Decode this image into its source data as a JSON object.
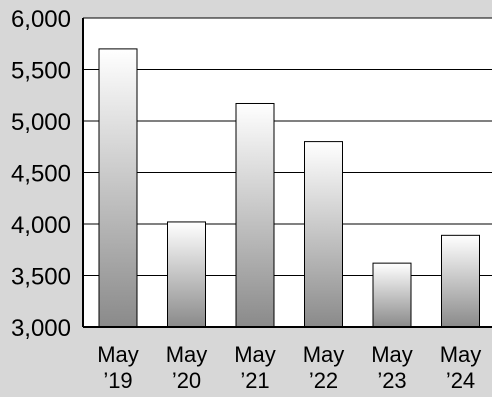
{
  "chart_data": {
    "type": "bar",
    "title": "",
    "xlabel": "",
    "ylabel": "",
    "categories": [
      {
        "line1": "May",
        "line2": "’19"
      },
      {
        "line1": "May",
        "line2": "’20"
      },
      {
        "line1": "May",
        "line2": "’21"
      },
      {
        "line1": "May",
        "line2": "’22"
      },
      {
        "line1": "May",
        "line2": "’23"
      },
      {
        "line1": "May",
        "line2": "’24"
      }
    ],
    "values": [
      5700,
      4020,
      5170,
      4800,
      3620,
      3890
    ],
    "ylim": [
      3000,
      6000
    ],
    "yticks": [
      3000,
      3500,
      4000,
      4500,
      5000,
      5500,
      6000
    ],
    "ytick_labels": [
      "3,000",
      "3,500",
      "4,000",
      "4,500",
      "5,000",
      "5,500",
      "6,000"
    ],
    "grid": true,
    "legend": "none",
    "colors": {
      "background": "#d7d7d7",
      "plot_area": "#ffffff",
      "bar_top": "#ffffff",
      "bar_bottom": "#8a8a8a",
      "grid": "#000000"
    }
  }
}
